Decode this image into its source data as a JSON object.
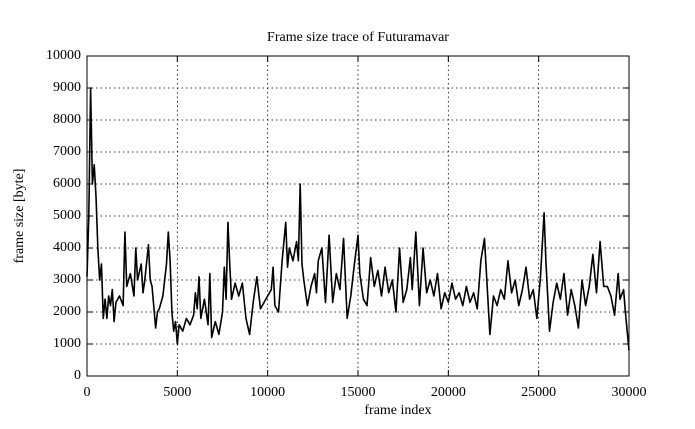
{
  "chart_data": {
    "type": "line",
    "title": "Frame size trace of Futuramavar",
    "x_label": "frame index",
    "y_label": "frame size [byte]",
    "grid": true,
    "series": [
      {
        "color": "#000000",
        "x": [
          0,
          100,
          200,
          300,
          400,
          500,
          600,
          700,
          800,
          900,
          1000,
          1100,
          1200,
          1300,
          1400,
          1500,
          1600,
          1800,
          2000,
          2100,
          2200,
          2400,
          2600,
          2700,
          2800,
          3000,
          3100,
          3200,
          3400,
          3500,
          3600,
          3800,
          3900,
          4000,
          4200,
          4400,
          4500,
          4600,
          4700,
          4800,
          4900,
          5000,
          5100,
          5300,
          5500,
          5700,
          5900,
          6000,
          6100,
          6200,
          6300,
          6500,
          6700,
          6800,
          6900,
          7100,
          7300,
          7500,
          7600,
          7700,
          7800,
          7900,
          8000,
          8200,
          8400,
          8600,
          8800,
          9000,
          9200,
          9400,
          9600,
          9800,
          10000,
          10200,
          10300,
          10400,
          10600,
          10800,
          11000,
          11100,
          11200,
          11400,
          11600,
          11700,
          11800,
          11900,
          12000,
          12200,
          12400,
          12600,
          12700,
          12800,
          13000,
          13200,
          13400,
          13600,
          13800,
          14000,
          14200,
          14400,
          14600,
          14800,
          15000,
          15100,
          15300,
          15500,
          15700,
          15900,
          16100,
          16300,
          16500,
          16700,
          16900,
          17100,
          17300,
          17500,
          17700,
          17900,
          18000,
          18200,
          18400,
          18600,
          18800,
          19000,
          19200,
          19400,
          19600,
          19800,
          20000,
          20200,
          20400,
          20600,
          20800,
          21000,
          21200,
          21400,
          21600,
          21800,
          22000,
          22200,
          22300,
          22500,
          22700,
          22900,
          23100,
          23300,
          23500,
          23700,
          23900,
          24100,
          24300,
          24500,
          24700,
          24900,
          25100,
          25300,
          25400,
          25600,
          25800,
          26000,
          26200,
          26400,
          26600,
          26800,
          27000,
          27200,
          27400,
          27600,
          27800,
          28000,
          28200,
          28400,
          28600,
          28800,
          29000,
          29200,
          29400,
          29500,
          29700,
          29800,
          30000
        ],
        "values": [
          3100,
          5000,
          9000,
          6000,
          6600,
          5600,
          4000,
          3000,
          3500,
          1800,
          2400,
          1800,
          2500,
          2200,
          2700,
          1700,
          2300,
          2500,
          2200,
          4500,
          2800,
          3200,
          2500,
          4000,
          3000,
          3500,
          2600,
          3000,
          4100,
          3000,
          2800,
          1500,
          2000,
          2100,
          2500,
          3500,
          4500,
          3600,
          2000,
          1400,
          1700,
          1000,
          1600,
          1400,
          1800,
          1600,
          1900,
          2600,
          2100,
          3100,
          1800,
          2400,
          1600,
          3200,
          1200,
          1700,
          1300,
          2000,
          3400,
          2400,
          4800,
          3500,
          2400,
          2900,
          2500,
          2900,
          1800,
          1300,
          2300,
          3100,
          2100,
          2300,
          2500,
          2700,
          3400,
          2200,
          2000,
          3600,
          4800,
          3400,
          4000,
          3600,
          4200,
          3600,
          6000,
          3500,
          3000,
          2200,
          2800,
          3200,
          2600,
          3600,
          4000,
          2300,
          4400,
          2300,
          3200,
          2700,
          4300,
          1800,
          2500,
          3500,
          4400,
          3200,
          2400,
          2200,
          3700,
          2800,
          3300,
          2500,
          3400,
          2600,
          3000,
          2000,
          4000,
          2300,
          2700,
          3700,
          2700,
          4500,
          2200,
          4000,
          2600,
          3000,
          2500,
          3200,
          2100,
          2600,
          2300,
          2900,
          2400,
          2600,
          2200,
          2800,
          2300,
          2600,
          2100,
          3600,
          4300,
          2300,
          1300,
          2500,
          2200,
          2700,
          2400,
          3600,
          2600,
          3000,
          2200,
          2700,
          3400,
          2400,
          2700,
          1800,
          3100,
          5100,
          3600,
          1400,
          2300,
          2900,
          2400,
          3200,
          1900,
          2700,
          2200,
          1500,
          3000,
          2200,
          2800,
          3800,
          2600,
          4200,
          2800,
          2800,
          2500,
          1900,
          3200,
          2400,
          2700,
          2000,
          800
        ]
      }
    ],
    "xlim": [
      0,
      30000
    ],
    "xticks": [
      0,
      5000,
      10000,
      15000,
      20000,
      25000,
      30000
    ],
    "ylim": [
      0,
      10000
    ],
    "yticks": [
      0,
      1000,
      2000,
      3000,
      4000,
      5000,
      6000,
      7000,
      8000,
      9000,
      10000
    ]
  }
}
